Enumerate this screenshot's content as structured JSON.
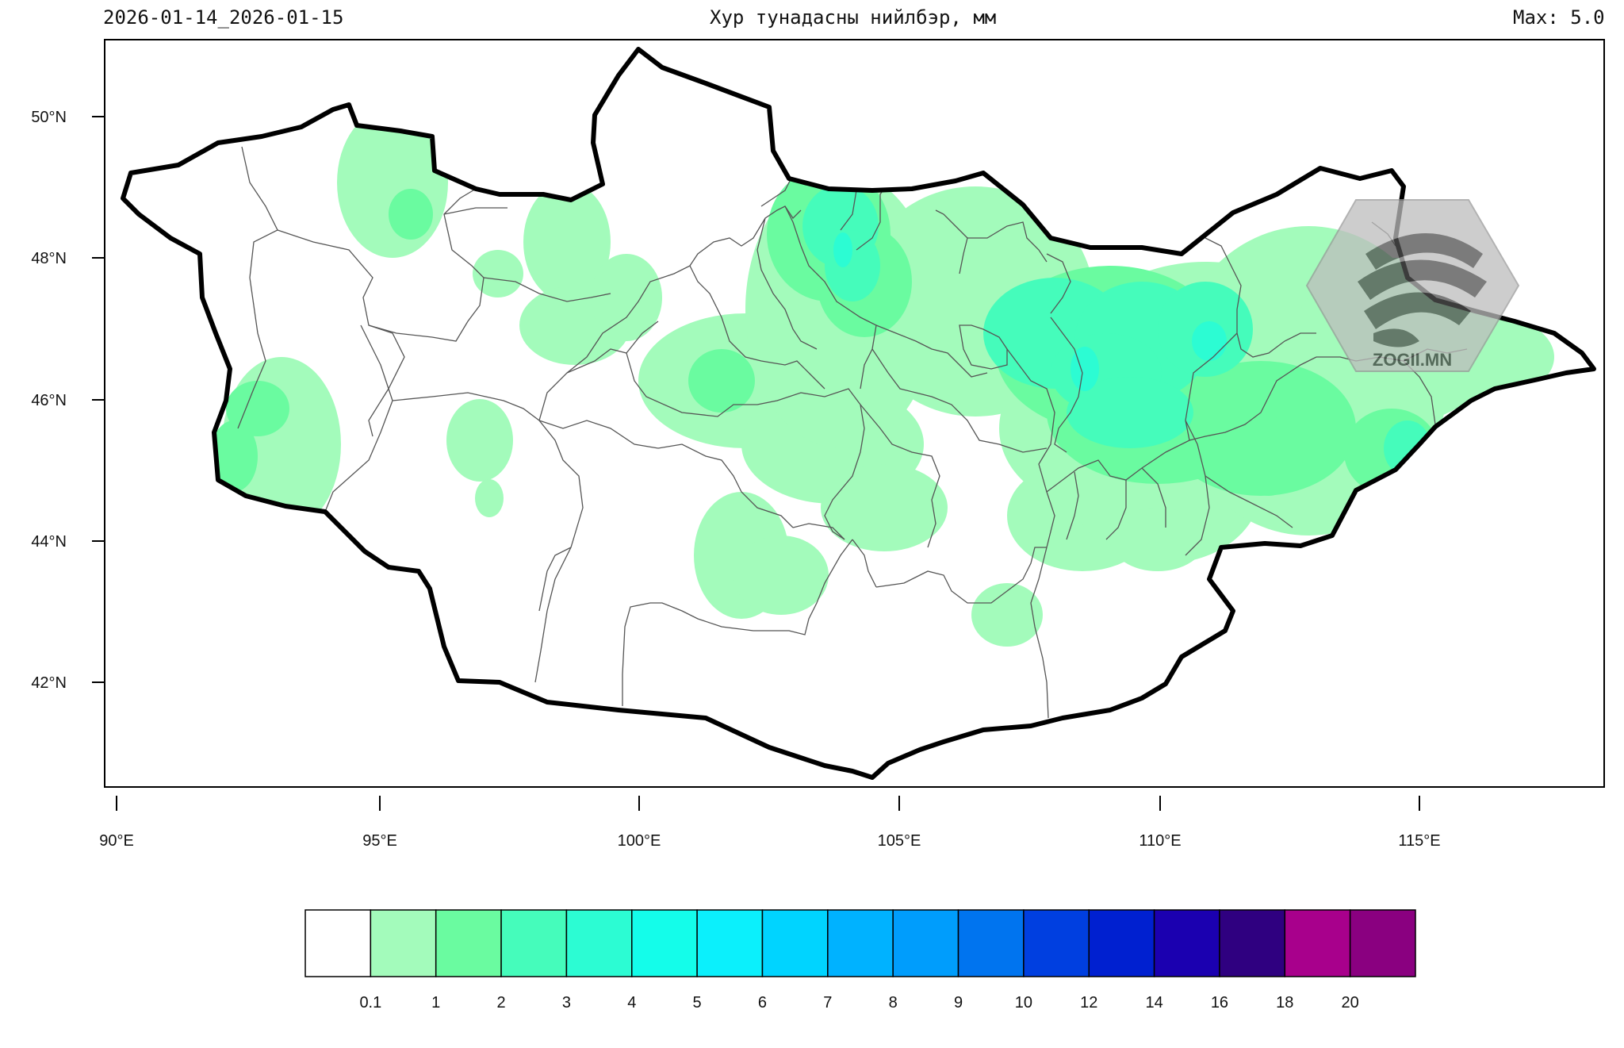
{
  "header": {
    "date_range": "2026-01-14_2026-01-15",
    "title": "Хур тунадасны нийлбэр, мм",
    "max_label": "Max: 5.0"
  },
  "map": {
    "region": "Mongolia",
    "variable": "precipitation",
    "lon_ticks": [
      "90°E",
      "95°E",
      "100°E",
      "105°E",
      "110°E",
      "115°E"
    ],
    "lat_ticks": [
      "50°N",
      "48°N",
      "46°N",
      "44°N",
      "42°N"
    ],
    "lon_range": [
      89.8,
      118.8
    ],
    "lat_range": [
      40.4,
      51.1
    ],
    "border_color": "#000000",
    "province_line_color": "#555555"
  },
  "legend": {
    "colors": [
      "#ffffff",
      "#a3fbbb",
      "#6afba0",
      "#45fcbb",
      "#2cfcd3",
      "#14fdea",
      "#0bf0fc",
      "#00d4ff",
      "#00b2ff",
      "#009dfc",
      "#0074ef",
      "#003fe0",
      "#0020d0",
      "#1b00b0",
      "#2f0080",
      "#a8008c",
      "#8a0080"
    ],
    "labels": [
      "0.1",
      "1",
      "2",
      "3",
      "4",
      "5",
      "6",
      "7",
      "8",
      "9",
      "10",
      "12",
      "14",
      "16",
      "18",
      "20"
    ]
  },
  "watermark": {
    "text": "ZOGII.MN",
    "icon": "zogii-logo-icon"
  }
}
